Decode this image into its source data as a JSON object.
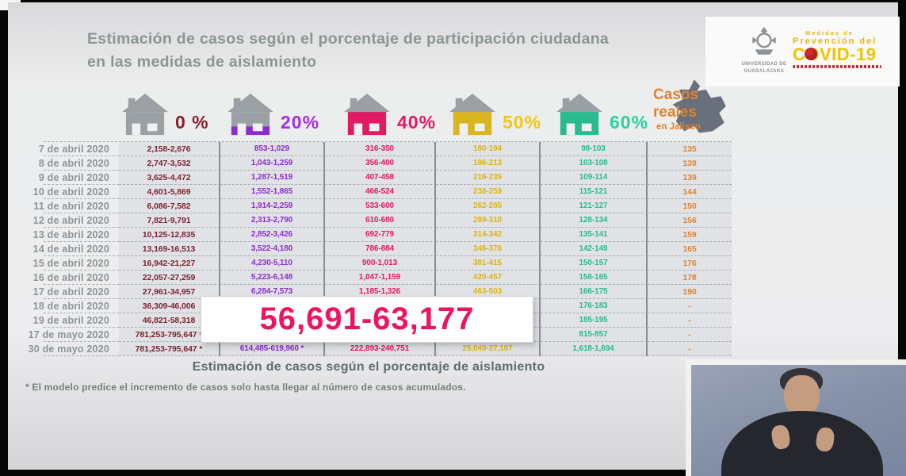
{
  "slide": {
    "title": "Estimación de casos según el porcentaje de participación ciudadana en las medidas de aislamiento",
    "caption": "Estimación de casos según el porcentaje de aislamiento",
    "footnote": "* El modelo predice el incremento de casos solo hasta llegar al número de casos acumulados."
  },
  "logos": {
    "university": "UNIVERSIDAD DE GUADALAJARA",
    "covid": {
      "line1": "Medidas de",
      "line2": "Prevención del",
      "line3": "COVID-19"
    }
  },
  "header": {
    "isolation_levels": [
      {
        "label": "0 %",
        "percent": 0,
        "label_color": "#8e1f2f",
        "value_color": "#7d2433"
      },
      {
        "label": "20%",
        "percent": 20,
        "label_color": "#a32fe6",
        "value_color": "#8b2cd1"
      },
      {
        "label": "40%",
        "percent": 40,
        "label_color": "#ec1563",
        "value_color": "#e01a63"
      },
      {
        "label": "50%",
        "percent": 50,
        "label_color": "#f2c714",
        "value_color": "#d9b520"
      },
      {
        "label": "60%",
        "percent": 60,
        "label_color": "#2bd1a0",
        "value_color": "#29bb8f"
      }
    ],
    "real_cases": {
      "line1": "Casos",
      "line2": "reales",
      "line3": "en Jalisco",
      "color": "#e0822d"
    }
  },
  "highlight": {
    "value": "56,691-63,177",
    "color": "#ec1563"
  },
  "table": {
    "rows": [
      {
        "date": "7 de abril 2020",
        "p0": "2,158-2,676",
        "p20": "853-1,029",
        "p40": "316-350",
        "p50": "180-194",
        "p60": "98-103",
        "real": "135"
      },
      {
        "date": "8 de abril 2020",
        "p0": "2,747-3,532",
        "p20": "1,043-1,259",
        "p40": "356-400",
        "p50": "196-213",
        "p60": "103-108",
        "real": "139"
      },
      {
        "date": "9 de abril 2020",
        "p0": "3,625-4,472",
        "p20": "1,287-1,519",
        "p40": "407-458",
        "p50": "216-235",
        "p60": "109-114",
        "real": "139"
      },
      {
        "date": "10 de abril 2020",
        "p0": "4,601-5,869",
        "p20": "1,552-1,865",
        "p40": "466-524",
        "p50": "238-259",
        "p60": "115-121",
        "real": "144"
      },
      {
        "date": "11 de abril 2020",
        "p0": "6,086-7,582",
        "p20": "1,914-2,259",
        "p40": "533-600",
        "p50": "262-285",
        "p60": "121-127",
        "real": "150"
      },
      {
        "date": "12 de abril 2020",
        "p0": "7,821-9,791",
        "p20": "2,313-2,790",
        "p40": "610-680",
        "p50": "289-310",
        "p60": "128-134",
        "real": "156"
      },
      {
        "date": "13 de abril 2020",
        "p0": "10,125-12,835",
        "p20": "2,852-3,426",
        "p40": "692-779",
        "p50": "314-342",
        "p60": "135-141",
        "real": "159"
      },
      {
        "date": "14 de abril 2020",
        "p0": "13,169-16,513",
        "p20": "3,522-4,180",
        "p40": "786-884",
        "p50": "346-376",
        "p60": "142-149",
        "real": "165"
      },
      {
        "date": "15 de abril 2020",
        "p0": "16,942-21,227",
        "p20": "4,230-5,110",
        "p40": "900-1,013",
        "p50": "381-415",
        "p60": "150-157",
        "real": "176"
      },
      {
        "date": "16 de abril 2020",
        "p0": "22,057-27,259",
        "p20": "5,223-6,148",
        "p40": "1,047-1,159",
        "p50": "420-457",
        "p60": "158-165",
        "real": "178"
      },
      {
        "date": "17 de abril 2020",
        "p0": "27,961-34,957",
        "p20": "6,284-7,573",
        "p40": "1,185-1,326",
        "p50": "463-503",
        "p60": "166-175",
        "real": "190"
      },
      {
        "date": "18 de abril 2020",
        "p0": "36,309-46,006",
        "p20": "",
        "p40": "",
        "p50": "",
        "p60": "176-183",
        "real": "-"
      },
      {
        "date": "19 de abril 2020",
        "p0": "46,821-58,318",
        "p20": "",
        "p40": "",
        "p50": "",
        "p60": "185-195",
        "real": "-"
      },
      {
        "date": "17 de mayo 2020",
        "p0": "781,253-795,647 *",
        "p20": "",
        "p40": "",
        "p50": "",
        "p60": "815-857",
        "real": "-"
      },
      {
        "date": "30 de mayo 2020",
        "p0": "781,253-795,647 *",
        "p20": "614,485-619,960 *",
        "p40": "222,893-240,751",
        "p50": "25,049-27,107",
        "p60": "1,618-1,694",
        "real": "-"
      }
    ]
  }
}
